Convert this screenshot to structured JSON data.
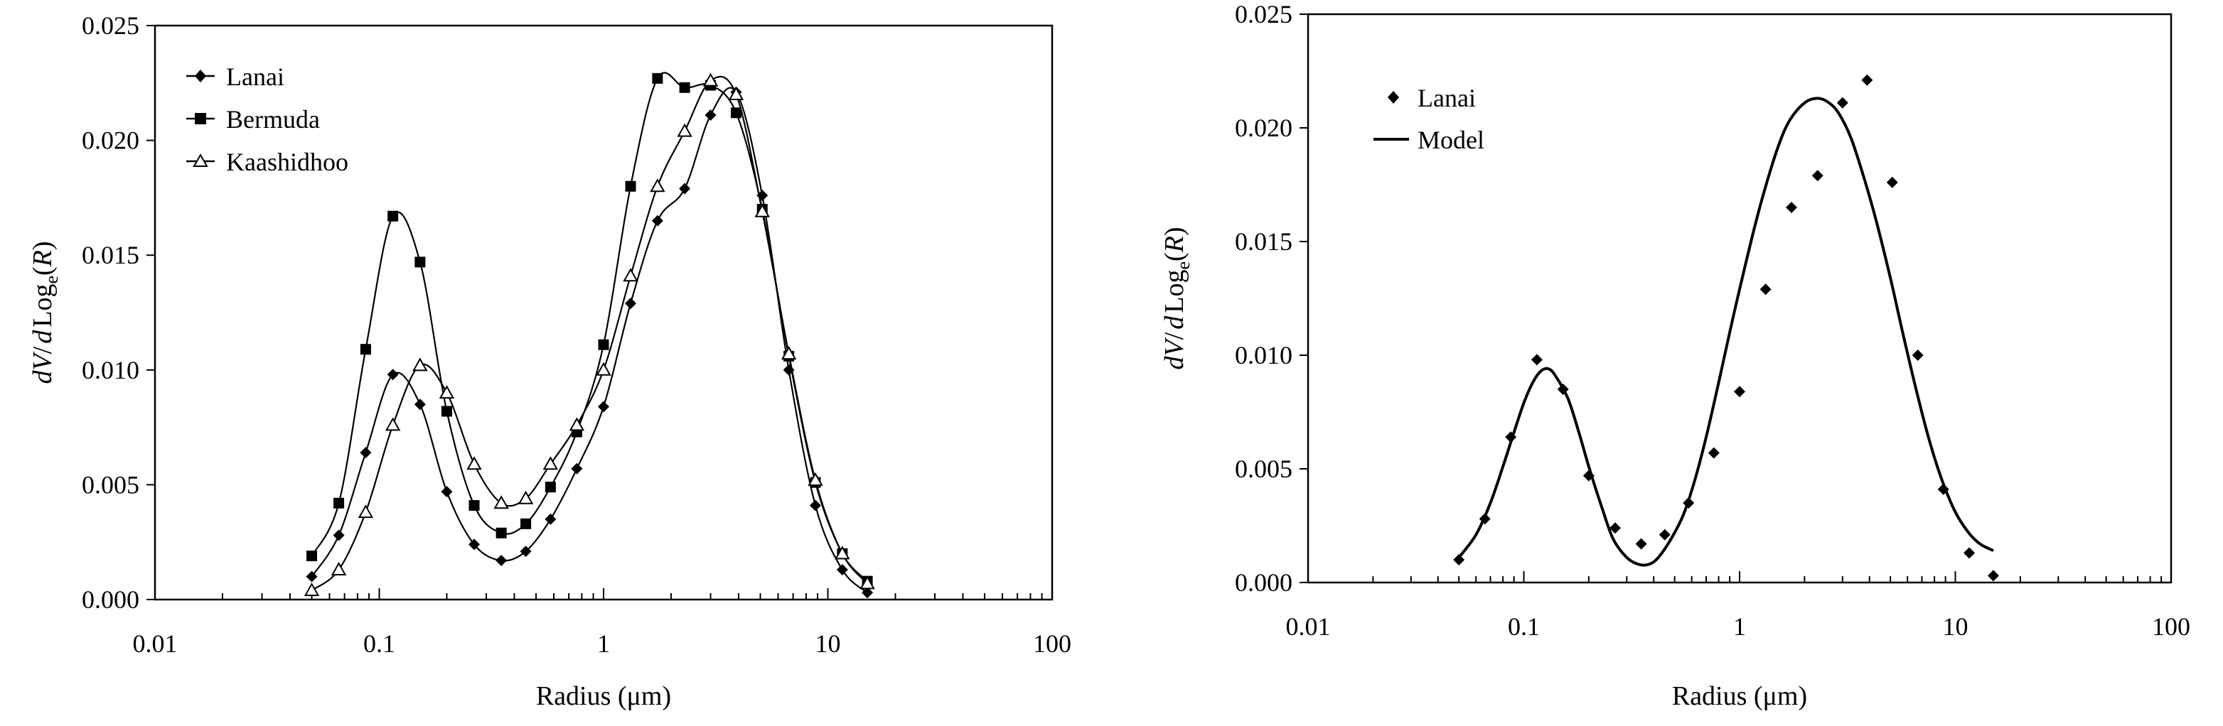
{
  "colors": {
    "ink": "#000000",
    "background": "#ffffff"
  },
  "chart_data": [
    {
      "type": "line",
      "xscale": "log",
      "xlim": [
        0.01,
        100
      ],
      "ylim": [
        0,
        0.025
      ],
      "xticks": [
        "0.01",
        "0.1",
        "1",
        "10",
        "100"
      ],
      "yticks": [
        "0.000",
        "0.005",
        "0.010",
        "0.015",
        "0.020",
        "0.025"
      ],
      "xlabel": "Radius  (μm)",
      "ylabel": {
        "a": "dV",
        "b": "/",
        "c": "d",
        "d": "Log",
        "e": "e",
        "f": "(",
        "g": "R",
        "h": ")"
      },
      "legend_position": "top-left",
      "grid": false,
      "series": [
        {
          "name": "Lanai",
          "marker": "diamond",
          "x": [
            0.05,
            0.066,
            0.087,
            0.115,
            0.152,
            0.2,
            0.265,
            0.35,
            0.45,
            0.58,
            0.76,
            1.0,
            1.32,
            1.74,
            2.3,
            3.0,
            3.9,
            5.1,
            6.7,
            8.8,
            11.6,
            15.0
          ],
          "y": [
            0.001,
            0.0028,
            0.0064,
            0.0098,
            0.0085,
            0.0047,
            0.0024,
            0.0017,
            0.0021,
            0.0035,
            0.0057,
            0.0084,
            0.0129,
            0.0165,
            0.0179,
            0.0211,
            0.0221,
            0.0176,
            0.01,
            0.0041,
            0.0013,
            0.0003
          ]
        },
        {
          "name": "Bermuda",
          "marker": "square",
          "x": [
            0.05,
            0.066,
            0.087,
            0.115,
            0.152,
            0.2,
            0.265,
            0.35,
            0.45,
            0.58,
            0.76,
            1.0,
            1.32,
            1.74,
            2.3,
            3.0,
            3.9,
            5.1,
            6.7,
            8.8,
            11.6,
            15.0
          ],
          "y": [
            0.0019,
            0.0042,
            0.0109,
            0.0167,
            0.0147,
            0.0082,
            0.0041,
            0.0029,
            0.0033,
            0.0049,
            0.0073,
            0.0111,
            0.018,
            0.0227,
            0.0223,
            0.0224,
            0.0212,
            0.017,
            0.0106,
            0.0051,
            0.002,
            0.0008
          ]
        },
        {
          "name": "Kaashidhoo",
          "marker": "triangle",
          "x": [
            0.05,
            0.066,
            0.087,
            0.115,
            0.152,
            0.2,
            0.265,
            0.35,
            0.45,
            0.58,
            0.76,
            1.0,
            1.32,
            1.74,
            2.3,
            3.0,
            3.9,
            5.1,
            6.7,
            8.8,
            11.6,
            15.0
          ],
          "y": [
            0.0004,
            0.0013,
            0.0038,
            0.0076,
            0.0102,
            0.009,
            0.0059,
            0.0042,
            0.0044,
            0.0059,
            0.0076,
            0.01,
            0.0141,
            0.018,
            0.0204,
            0.0226,
            0.022,
            0.0169,
            0.0107,
            0.0052,
            0.002,
            0.0007
          ]
        }
      ]
    },
    {
      "type": "scatter",
      "xscale": "log",
      "xlim": [
        0.01,
        100
      ],
      "ylim": [
        0,
        0.025
      ],
      "xticks": [
        "0.01",
        "0.1",
        "1",
        "10",
        "100"
      ],
      "yticks": [
        "0.000",
        "0.005",
        "0.010",
        "0.015",
        "0.020",
        "0.025"
      ],
      "xlabel": "Radius  (μm)",
      "ylabel": {
        "a": "dV",
        "b": "/",
        "c": "d",
        "d": "Log",
        "e": "e",
        "f": "(",
        "g": "R",
        "h": ")"
      },
      "legend_position": "top-left",
      "grid": false,
      "series": [
        {
          "name": "Lanai",
          "marker": "diamond",
          "style": "markers",
          "x": [
            0.05,
            0.066,
            0.087,
            0.115,
            0.152,
            0.2,
            0.265,
            0.35,
            0.45,
            0.58,
            0.76,
            1.0,
            1.32,
            1.74,
            2.3,
            3.0,
            3.9,
            5.1,
            6.7,
            8.8,
            11.6,
            15.0
          ],
          "y": [
            0.001,
            0.0028,
            0.0064,
            0.0098,
            0.0085,
            0.0047,
            0.0024,
            0.0017,
            0.0021,
            0.0035,
            0.0057,
            0.0084,
            0.0129,
            0.0165,
            0.0179,
            0.0211,
            0.0221,
            0.0176,
            0.01,
            0.0041,
            0.0013,
            0.0003
          ]
        },
        {
          "name": "Model",
          "style": "line",
          "x": [
            0.05,
            0.06,
            0.07,
            0.08,
            0.09,
            0.1,
            0.11,
            0.12,
            0.13,
            0.14,
            0.16,
            0.18,
            0.2,
            0.23,
            0.26,
            0.3,
            0.34,
            0.38,
            0.42,
            0.48,
            0.55,
            0.62,
            0.7,
            0.8,
            0.9,
            1.0,
            1.15,
            1.3,
            1.5,
            1.7,
            2.0,
            2.3,
            2.6,
            2.9,
            3.3,
            3.8,
            4.3,
            5.0,
            5.7,
            6.5,
            7.5,
            8.6,
            10.0,
            11.5,
            13.0,
            15.0
          ],
          "y": [
            0.0011,
            0.0021,
            0.0035,
            0.0051,
            0.0066,
            0.0079,
            0.0088,
            0.0093,
            0.0094,
            0.0091,
            0.0081,
            0.0066,
            0.0051,
            0.0033,
            0.0019,
            0.0011,
            0.0008,
            0.0008,
            0.0011,
            0.0019,
            0.003,
            0.0045,
            0.0064,
            0.0088,
            0.011,
            0.0129,
            0.0153,
            0.0172,
            0.0191,
            0.0203,
            0.0211,
            0.0213,
            0.0211,
            0.0206,
            0.0195,
            0.0177,
            0.0159,
            0.0134,
            0.011,
            0.0087,
            0.0064,
            0.0046,
            0.0031,
            0.0022,
            0.0017,
            0.0014
          ]
        }
      ]
    }
  ]
}
